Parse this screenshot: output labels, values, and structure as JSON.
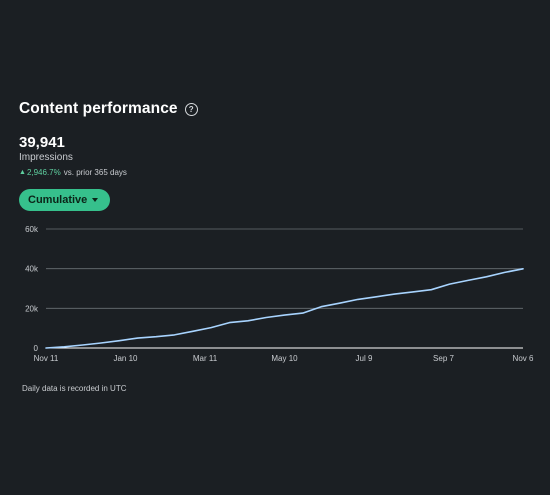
{
  "header": {
    "title": "Content performance",
    "help_icon": "question-circle-icon"
  },
  "metric": {
    "value": "39,941",
    "label": "Impressions",
    "delta_value": "2,946.7%",
    "delta_suffix": "vs. prior 365 days",
    "delta_arrow": "▲"
  },
  "filter": {
    "label": "Cumulative",
    "icon": "caret-down-icon"
  },
  "colors": {
    "background": "#1b1f23",
    "accent": "#36c08c",
    "positive": "#5fd0a0",
    "line": "#a8d4ff"
  },
  "chart_data": {
    "type": "line",
    "series": [
      {
        "x": [
          "Nov 11",
          "Nov 25",
          "Dec 9",
          "Dec 23",
          "Jan 6",
          "Jan 20",
          "Feb 3",
          "Feb 17",
          "Mar 2",
          "Mar 16",
          "Mar 30",
          "Apr 13",
          "Apr 27",
          "May 11",
          "May 25",
          "Jun 8",
          "Jun 22",
          "Jul 6",
          "Jul 20",
          "Aug 3",
          "Aug 17",
          "Aug 31",
          "Sep 14",
          "Sep 28",
          "Oct 12",
          "Oct 26",
          "Nov 6"
        ],
        "values": [
          0,
          600,
          1500,
          2500,
          3700,
          5000,
          5700,
          6600,
          8400,
          10300,
          12800,
          13700,
          15400,
          16600,
          17600,
          20800,
          22600,
          24500,
          25800,
          27200,
          28300,
          29400,
          32200,
          34100,
          35900,
          38100,
          39941
        ]
      }
    ],
    "xticks": [
      "Nov 11",
      "Jan 10",
      "Mar 11",
      "May 10",
      "Jul 9",
      "Sep 7",
      "Nov 6"
    ],
    "yticks": [
      "0",
      "20k",
      "40k",
      "60k"
    ],
    "ytick_values": [
      0,
      20000,
      40000,
      60000
    ],
    "ylim": [
      0,
      60000
    ],
    "grid": true,
    "xlabel": "",
    "ylabel": ""
  },
  "footnote": "Daily data is recorded in UTC"
}
